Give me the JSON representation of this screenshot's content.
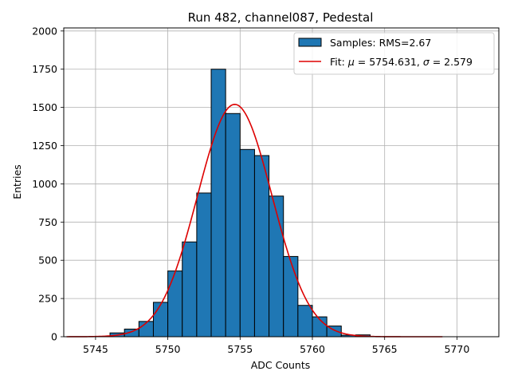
{
  "chart_data": {
    "type": "bar",
    "title": "Run 482, channel087, Pedestal",
    "xlabel": "ADC Counts",
    "ylabel": "Entries",
    "xlim": [
      5742.8,
      5772.9
    ],
    "ylim": [
      0,
      2020
    ],
    "xticks": [
      5745,
      5750,
      5755,
      5760,
      5765,
      5770
    ],
    "yticks": [
      0,
      250,
      500,
      750,
      1000,
      1250,
      1500,
      1750,
      2000
    ],
    "xtick_labels": [
      "5745",
      "5750",
      "5755",
      "5760",
      "5765",
      "5770"
    ],
    "ytick_labels": [
      "0",
      "250",
      "500",
      "750",
      "1000",
      "1250",
      "1500",
      "1750",
      "2000"
    ],
    "grid": true,
    "legend_position": "top-right",
    "bar_color": "#1f77b4",
    "bar_edge_color": "#000000",
    "fit_color": "#dd0000",
    "histogram": {
      "name": "Samples: RMS=2.67",
      "bin_starts": [
        5746,
        5747,
        5748,
        5749,
        5750,
        5751,
        5752,
        5753,
        5754,
        5755,
        5756,
        5757,
        5758,
        5759,
        5760,
        5761,
        5762,
        5763
      ],
      "bin_width": 1,
      "values": [
        25,
        50,
        100,
        225,
        430,
        620,
        940,
        1750,
        1460,
        1225,
        1185,
        920,
        525,
        205,
        130,
        70,
        10,
        12
      ]
    },
    "fit": {
      "name_prefix": "Fit: ",
      "name_mu": "μ",
      "name_mid": " = 5754.631, ",
      "name_sigma": "σ",
      "name_end": " = 2.579",
      "mu": 5754.631,
      "sigma": 2.579,
      "amplitude": 1520,
      "x_range": [
        5743,
        5769
      ]
    }
  }
}
